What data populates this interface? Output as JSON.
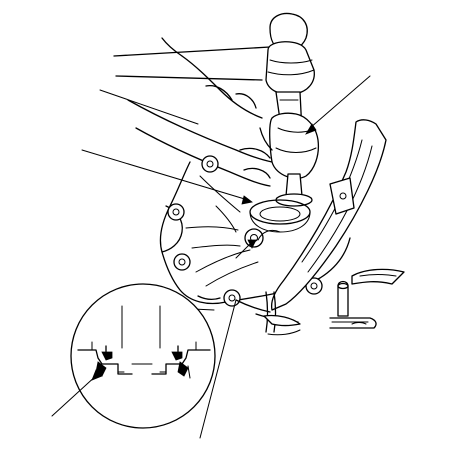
{
  "figure": {
    "labels": [],
    "icons": {
      "hammer": "hammer-icon",
      "drift": "seal-driver-tool-icon",
      "housing": "transmission-housing",
      "seal_detail": "oil-seal-detail-magnifier",
      "dowel_pin": "dowel-pin",
      "magnet": "magnet-part"
    },
    "line_color": "#000000",
    "background": "#ffffff"
  }
}
